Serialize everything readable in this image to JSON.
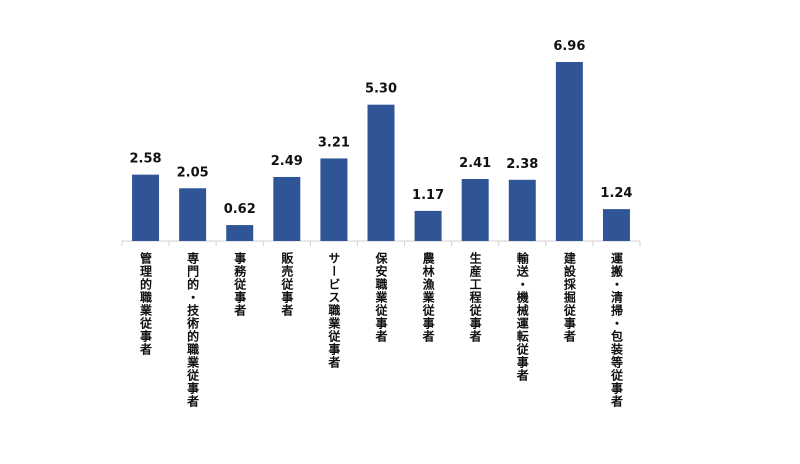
{
  "chart_data": {
    "type": "bar",
    "categories": [
      "管理的職業従事者",
      "専門的・技術的職業従事者",
      "事務従事者",
      "販売従事者",
      "サービス職業従事者",
      "保安職業従事者",
      "農林漁業従事者",
      "生産工程従事者",
      "輸送・機械運転従事者",
      "建設採掘従事者",
      "運搬・清掃・包装等従事者"
    ],
    "values": [
      2.58,
      2.05,
      0.62,
      2.49,
      3.21,
      5.3,
      1.17,
      2.41,
      2.38,
      6.96,
      1.24
    ],
    "value_labels": [
      "2.58",
      "2.05",
      "0.62",
      "2.49",
      "3.21",
      "5.30",
      "1.17",
      "2.41",
      "2.38",
      "6.96",
      "1.24"
    ],
    "color": "#2f5597"
  }
}
